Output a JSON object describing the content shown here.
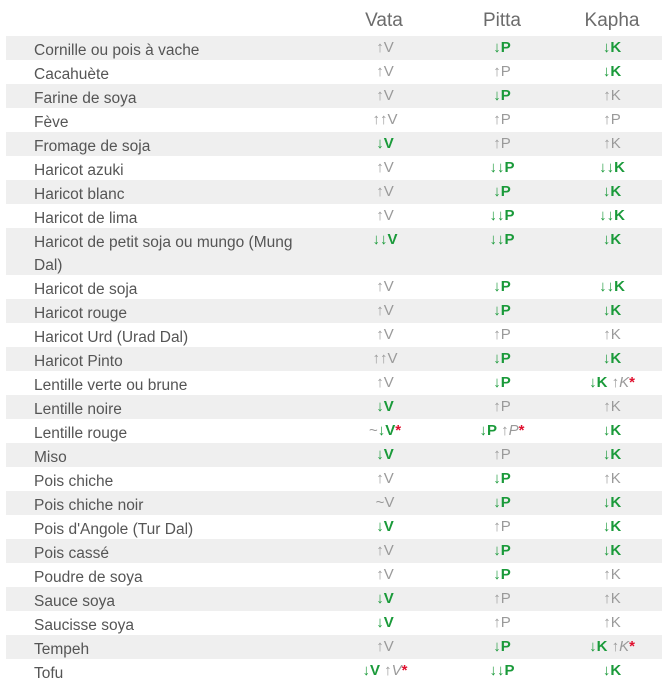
{
  "headers": {
    "col1": "Vata",
    "col2": "Pitta",
    "col3": "Kapha"
  },
  "rows": [
    {
      "food": "Cornille ou pois à vache",
      "v": "↑V",
      "p": "↓P",
      "k": "↓K"
    },
    {
      "food": "Cacahuète",
      "v": "↑V",
      "p": "↑P",
      "k": "↓K"
    },
    {
      "food": "Farine de soya",
      "v": "↑V",
      "p": "↓P",
      "k": "↑K"
    },
    {
      "food": "Fève",
      "v": "↑↑V",
      "p": "↑P",
      "k": "↑P"
    },
    {
      "food": "Fromage de soja",
      "v": "↓V",
      "p": "↑P",
      "k": "↑K"
    },
    {
      "food": "Haricot azuki",
      "v": "↑V",
      "p": "↓↓P",
      "k": "↓↓K"
    },
    {
      "food": "Haricot blanc",
      "v": "↑V",
      "p": "↓P",
      "k": "↓K"
    },
    {
      "food": "Haricot de lima",
      "v": "↑V",
      "p": "↓↓P",
      "k": "↓↓K"
    },
    {
      "food": "Haricot de petit soja ou mungo (Mung Dal)",
      "v": "↓↓V",
      "p": "↓↓P",
      "k": "↓K"
    },
    {
      "food": "Haricot de soja",
      "v": "↑V",
      "p": "↓P",
      "k": "↓↓K"
    },
    {
      "food": "Haricot rouge",
      "v": "↑V",
      "p": "↓P",
      "k": "↓K"
    },
    {
      "food": "Haricot Urd (Urad Dal)",
      "v": "↑V",
      "p": "↑P",
      "k": "↑K"
    },
    {
      "food": "Haricot Pinto",
      "v": "↑↑V",
      "p": "↓P",
      "k": "↓K"
    },
    {
      "food": "Lentille verte ou brune",
      "v": "↑V",
      "p": "↓P",
      "k": "↓K",
      "k_extra": "↑K",
      "k_star": "*"
    },
    {
      "food": "Lentille noire",
      "v": "↓V",
      "p": "↑P",
      "k": "↑K"
    },
    {
      "food": "Lentille rouge",
      "v_pre": "~",
      "v": "↓V",
      "v_star": "*",
      "p": "↓P",
      "p_extra": "↑P",
      "p_star": "*",
      "k": "↓K"
    },
    {
      "food": "Miso",
      "v": "↓V",
      "p": "↑P",
      "k": "↓K"
    },
    {
      "food": "Pois chiche",
      "v": "↑V",
      "p": "↓P",
      "k": "↑K"
    },
    {
      "food": "Pois chiche noir",
      "v": "~V",
      "p": "↓P",
      "k": "↓K"
    },
    {
      "food": "Pois d'Angole (Tur Dal)",
      "v": "↓V",
      "p": "↑P",
      "k": "↓K"
    },
    {
      "food": "Pois cassé",
      "v": "↑V",
      "p": "↓P",
      "k": "↓K"
    },
    {
      "food": "Poudre de soya",
      "v": "↑V",
      "p": "↓P",
      "k": "↑K"
    },
    {
      "food": "Sauce soya",
      "v": "↓V",
      "p": "↑P",
      "k": "↑K"
    },
    {
      "food": "Saucisse soya",
      "v": "↓V",
      "p": "↑P",
      "k": "↑K"
    },
    {
      "food": "Tempeh",
      "v": "↑V",
      "p": "↓P",
      "k": "↓K",
      "k_extra": "↑K",
      "k_star": "*"
    },
    {
      "food": "Tofu",
      "v": "↓V",
      "v_extra": "↑V",
      "v_star": "*",
      "p": "↓↓P",
      "k": "↓K"
    }
  ]
}
